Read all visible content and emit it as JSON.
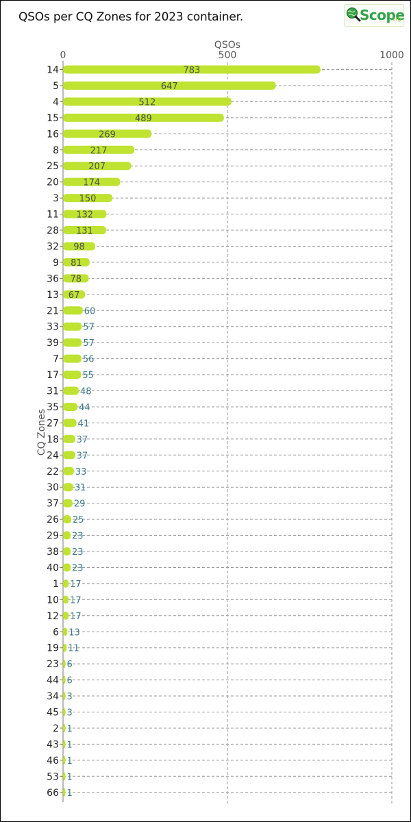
{
  "logo": {
    "text": "Scope",
    "suffix": ".org"
  },
  "colors": {
    "bar": "#bfe330",
    "grid": "#999999",
    "label_inside": "#4d4d4d",
    "label_outside": "#3d7a8c"
  },
  "chart_data": {
    "type": "bar",
    "orientation": "horizontal",
    "title": "QSOs per CQ Zones for 2023 container.",
    "xlabel": "QSOs",
    "ylabel": "CQ Zones",
    "xlim": [
      0,
      1000
    ],
    "xticks": [
      "0",
      "500",
      "1000"
    ],
    "xaxis_position": "top",
    "grid": true,
    "categories": [
      "14",
      "5",
      "4",
      "15",
      "16",
      "8",
      "25",
      "20",
      "3",
      "11",
      "28",
      "32",
      "9",
      "36",
      "13",
      "21",
      "33",
      "39",
      "7",
      "17",
      "31",
      "35",
      "27",
      "18",
      "24",
      "22",
      "30",
      "37",
      "26",
      "29",
      "38",
      "40",
      "1",
      "10",
      "12",
      "6",
      "19",
      "23",
      "44",
      "34",
      "45",
      "2",
      "43",
      "46",
      "53",
      "66"
    ],
    "values": [
      783,
      647,
      512,
      489,
      269,
      217,
      207,
      174,
      150,
      132,
      131,
      98,
      81,
      78,
      67,
      60,
      57,
      57,
      56,
      55,
      48,
      44,
      41,
      37,
      37,
      33,
      31,
      29,
      25,
      23,
      23,
      23,
      17,
      17,
      17,
      13,
      11,
      6,
      6,
      3,
      3,
      1,
      1,
      1,
      1,
      1
    ]
  }
}
